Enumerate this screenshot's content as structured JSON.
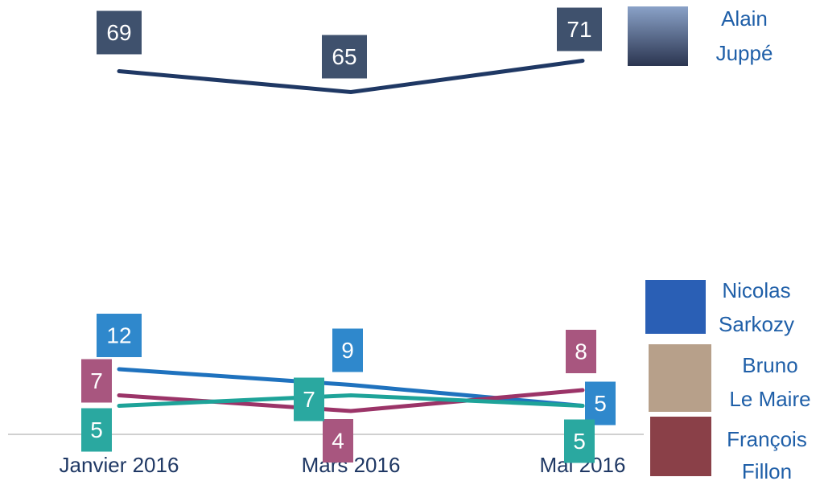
{
  "chart_data": {
    "type": "line",
    "categories": [
      "Janvier 2016",
      "Mars 2016",
      "Mai 2016"
    ],
    "ylim": [
      0,
      80
    ],
    "series": [
      {
        "name": "Alain Juppé",
        "color": "#1f3864",
        "label_color": "#3f516d",
        "values": [
          69,
          65,
          71
        ]
      },
      {
        "name": "Nicolas Sarkozy",
        "color": "#1f72be",
        "label_color": "#2f88cc",
        "values": [
          12,
          9,
          5
        ]
      },
      {
        "name": "Bruno Le Maire",
        "color": "#9b3468",
        "label_color": "#a8567f",
        "values": [
          7,
          4,
          8
        ]
      },
      {
        "name": "François Fillon",
        "color": "#1ea399",
        "label_color": "#2aa8a0",
        "values": [
          5,
          7,
          5
        ]
      }
    ]
  }
}
